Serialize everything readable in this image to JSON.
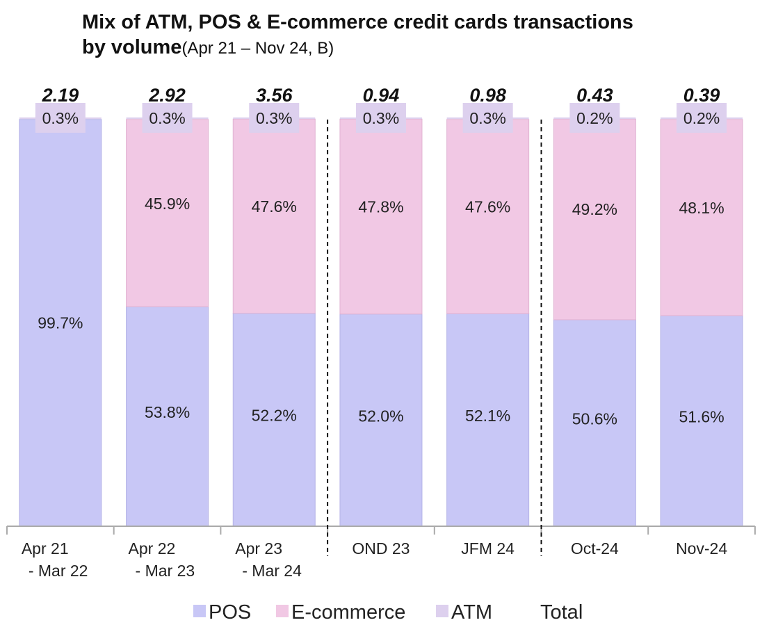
{
  "chart_data": {
    "type": "bar",
    "stacked": true,
    "normalized_percent": true,
    "title_line1": "Mix of ATM, POS & E-commerce credit cards transactions",
    "title_line2_bold": "by volume",
    "title_line2_rest": "(Apr 21 – Nov 24, B)",
    "categories": [
      [
        "Apr 21",
        "- Mar 22"
      ],
      [
        "Apr 22",
        "- Mar 23"
      ],
      [
        "Apr 23",
        "- Mar 24"
      ],
      [
        "OND 23"
      ],
      [
        "JFM 24"
      ],
      [
        "Oct-24"
      ],
      [
        "Nov-24"
      ]
    ],
    "series": [
      {
        "name": "POS",
        "color": "#c8c7f6",
        "values": [
          99.7,
          53.8,
          52.2,
          52.0,
          52.1,
          50.6,
          51.6
        ],
        "labels": [
          "99.7%",
          "53.8%",
          "52.2%",
          "52.0%",
          "52.1%",
          "50.6%",
          "51.6%"
        ]
      },
      {
        "name": "E-commerce",
        "color": "#f1c8e4",
        "values": [
          0,
          45.9,
          47.6,
          47.8,
          47.6,
          49.2,
          48.1
        ],
        "labels": [
          "",
          "45.9%",
          "47.6%",
          "47.8%",
          "47.6%",
          "49.2%",
          "48.1%"
        ]
      },
      {
        "name": "ATM",
        "color": "#ddd0ee",
        "values": [
          0.3,
          0.3,
          0.3,
          0.3,
          0.3,
          0.2,
          0.2
        ],
        "labels": [
          "0.3%",
          "0.3%",
          "0.3%",
          "0.3%",
          "0.3%",
          "0.2%",
          "0.2%"
        ]
      }
    ],
    "totals": {
      "name": "Total",
      "labels": [
        "2.19",
        "2.92",
        "3.56",
        "0.94",
        "0.98",
        "0.43",
        "0.39"
      ]
    },
    "ylim": [
      0,
      100
    ],
    "group_dividers_after": [
      2,
      4
    ],
    "legend_position": "bottom"
  }
}
